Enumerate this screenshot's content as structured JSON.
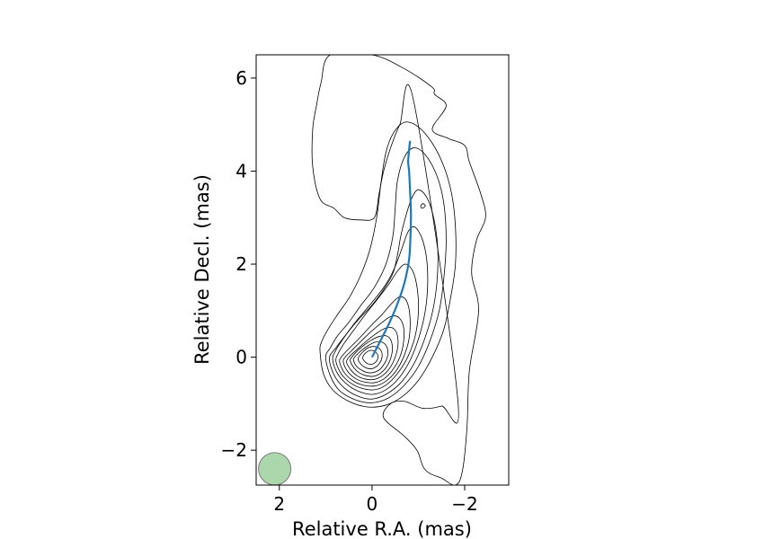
{
  "chart_data": {
    "type": "contour",
    "title": "",
    "xlabel": "Relative R.A. (mas)",
    "ylabel": "Relative Decl. (mas)",
    "xlim": [
      2.5,
      -2.95
    ],
    "ylim": [
      -2.75,
      6.5
    ],
    "x_ticks": [
      2,
      0,
      -2
    ],
    "x_tick_labels": [
      "2",
      "0",
      "−2"
    ],
    "y_ticks": [
      -2,
      0,
      2,
      4,
      6
    ],
    "y_tick_labels": [
      "−2",
      "0",
      "2",
      "4",
      "6"
    ],
    "grid": false,
    "ridge_line": {
      "color": "#1f77b4",
      "x": [
        0.0,
        -0.18,
        -0.38,
        -0.55,
        -0.7,
        -0.8,
        -0.83,
        -0.84,
        -0.82,
        -0.8,
        -0.78,
        -0.8,
        -0.82
      ],
      "y": [
        0.0,
        0.35,
        0.75,
        1.15,
        1.6,
        2.1,
        2.6,
        3.1,
        3.6,
        4.0,
        4.2,
        4.45,
        4.65
      ]
    },
    "beam": {
      "x": 2.1,
      "y": -2.4,
      "diameter_mas": 0.7,
      "color": "#90c990"
    },
    "contours": [
      {
        "level": 1,
        "x": [
          -1.85,
          -1.5,
          -1.1,
          -0.7,
          -0.4,
          -0.25,
          -0.7,
          -0.97,
          -1.1,
          -1.25,
          -1.5,
          -1.8,
          -1.95,
          -2.05,
          -2.1,
          -2.3,
          -2.15,
          -2.25,
          -2.45,
          -2.35,
          -2.1,
          -2.0,
          -1.65,
          -1.3,
          -1.6,
          -1.35,
          -1.3,
          -0.7,
          0.0,
          0.9,
          1.1,
          1.2,
          1.28,
          1.28,
          1.12,
          0.82,
          0.6,
          0.25,
          -0.05,
          -0.15,
          -0.25,
          -0.4,
          -0.6,
          -0.9
        ],
        "y": [
          -0.9,
          -1.05,
          -1.1,
          -0.95,
          -1.0,
          -1.3,
          -1.7,
          -2.0,
          -2.35,
          -2.5,
          -2.6,
          -2.75,
          -2.45,
          -1.5,
          -0.3,
          1.0,
          1.8,
          2.5,
          3.0,
          3.5,
          4.2,
          4.55,
          4.7,
          4.9,
          5.4,
          5.65,
          5.8,
          6.2,
          6.5,
          6.5,
          5.9,
          5.4,
          4.9,
          4.1,
          3.4,
          3.2,
          3.0,
          2.95,
          3.0,
          3.5,
          4.0,
          4.5,
          5.0,
          5.5
        ]
      },
      {
        "level": 2,
        "x": [
          1.12,
          1.05,
          0.85,
          0.5,
          0.1,
          -0.3,
          -0.65,
          -1.0,
          -1.3,
          -1.55,
          -1.7,
          -1.8,
          -1.8,
          -1.72,
          -1.55,
          -1.3,
          -1.0,
          -0.7,
          -0.45,
          -0.3,
          -0.2,
          -0.1,
          0.05,
          0.25,
          0.48,
          0.72,
          0.95,
          1.1
        ],
        "y": [
          0.1,
          -0.35,
          -0.7,
          -0.95,
          -1.07,
          -1.03,
          -0.85,
          -0.5,
          0.0,
          0.6,
          1.3,
          2.0,
          2.8,
          3.5,
          4.1,
          4.6,
          4.95,
          5.05,
          4.8,
          4.4,
          3.8,
          3.0,
          2.3,
          1.75,
          1.3,
          0.95,
          0.6,
          0.3
        ]
      },
      {
        "level": 3,
        "x": [
          1.0,
          0.9,
          0.7,
          0.35,
          0.0,
          -0.35,
          -0.7,
          -1.0,
          -1.25,
          -1.45,
          -1.55,
          -1.6,
          -1.55,
          -1.4,
          -1.15,
          -0.9,
          -0.7,
          -0.55,
          -0.5,
          -0.45,
          -0.3,
          -0.05,
          0.25,
          0.5,
          0.75,
          0.9
        ],
        "y": [
          0.0,
          -0.4,
          -0.72,
          -0.92,
          -0.98,
          -0.88,
          -0.6,
          -0.2,
          0.35,
          1.0,
          1.7,
          2.5,
          3.3,
          3.9,
          4.35,
          4.5,
          4.3,
          3.8,
          3.2,
          2.6,
          2.0,
          1.5,
          1.1,
          0.75,
          0.45,
          0.2
        ]
      },
      {
        "level": 4,
        "x": [
          0.92,
          0.82,
          0.6,
          0.3,
          0.0,
          -0.3,
          -0.62,
          -0.9,
          -1.12,
          -1.3,
          -1.4,
          -1.42,
          -1.35,
          -1.2,
          -1.0,
          -0.85,
          -0.72,
          -0.62,
          -0.55,
          -0.45,
          -0.25,
          0.0,
          0.3,
          0.55,
          0.78
        ],
        "y": [
          -0.02,
          -0.38,
          -0.66,
          -0.84,
          -0.9,
          -0.8,
          -0.55,
          -0.15,
          0.35,
          0.95,
          1.6,
          2.3,
          2.9,
          3.4,
          3.6,
          3.4,
          3.0,
          2.6,
          2.2,
          1.8,
          1.45,
          1.12,
          0.8,
          0.5,
          0.2
        ]
      },
      {
        "level": 5,
        "x": [
          0.85,
          0.74,
          0.52,
          0.25,
          -0.02,
          -0.3,
          -0.58,
          -0.83,
          -1.02,
          -1.15,
          -1.2,
          -1.18,
          -1.08,
          -0.92,
          -0.78,
          -0.65,
          -0.5,
          -0.32,
          -0.1,
          0.15,
          0.4,
          0.62,
          0.78
        ],
        "y": [
          -0.05,
          -0.36,
          -0.6,
          -0.75,
          -0.8,
          -0.7,
          -0.45,
          -0.05,
          0.45,
          1.0,
          1.55,
          2.1,
          2.55,
          2.8,
          2.7,
          2.35,
          1.95,
          1.6,
          1.3,
          1.0,
          0.7,
          0.4,
          0.15
        ]
      },
      {
        "level": 6,
        "x": [
          0.78,
          0.67,
          0.47,
          0.22,
          -0.05,
          -0.3,
          -0.55,
          -0.77,
          -0.93,
          -1.0,
          -0.98,
          -0.88,
          -0.72,
          -0.55,
          -0.35,
          -0.12,
          0.12,
          0.38,
          0.6,
          0.73
        ],
        "y": [
          -0.08,
          -0.35,
          -0.55,
          -0.67,
          -0.7,
          -0.6,
          -0.35,
          0.0,
          0.45,
          0.95,
          1.45,
          1.85,
          2.0,
          1.85,
          1.55,
          1.25,
          0.95,
          0.6,
          0.3,
          0.08
        ]
      },
      {
        "level": 7,
        "x": [
          0.7,
          0.6,
          0.42,
          0.2,
          -0.05,
          -0.28,
          -0.5,
          -0.68,
          -0.8,
          -0.82,
          -0.75,
          -0.6,
          -0.42,
          -0.22,
          0.02,
          0.28,
          0.5,
          0.65
        ],
        "y": [
          -0.1,
          -0.33,
          -0.5,
          -0.6,
          -0.62,
          -0.53,
          -0.32,
          0.0,
          0.4,
          0.85,
          1.2,
          1.3,
          1.15,
          0.92,
          0.68,
          0.4,
          0.18,
          0.02
        ]
      },
      {
        "level": 8,
        "x": [
          0.62,
          0.53,
          0.37,
          0.18,
          -0.04,
          -0.25,
          -0.44,
          -0.6,
          -0.68,
          -0.68,
          -0.58,
          -0.42,
          -0.22,
          0.02,
          0.25,
          0.45,
          0.58
        ],
        "y": [
          -0.1,
          -0.3,
          -0.45,
          -0.53,
          -0.55,
          -0.47,
          -0.28,
          0.0,
          0.32,
          0.65,
          0.85,
          0.88,
          0.75,
          0.55,
          0.33,
          0.13,
          0.0
        ]
      },
      {
        "level": 9,
        "x": [
          0.55,
          0.46,
          0.32,
          0.15,
          -0.04,
          -0.22,
          -0.38,
          -0.5,
          -0.56,
          -0.54,
          -0.44,
          -0.28,
          -0.08,
          0.14,
          0.33,
          0.48
        ],
        "y": [
          -0.1,
          -0.27,
          -0.4,
          -0.47,
          -0.48,
          -0.4,
          -0.24,
          0.0,
          0.26,
          0.5,
          0.63,
          0.62,
          0.5,
          0.33,
          0.16,
          0.02
        ]
      },
      {
        "level": 10,
        "x": [
          0.47,
          0.39,
          0.27,
          0.12,
          -0.04,
          -0.19,
          -0.32,
          -0.41,
          -0.44,
          -0.4,
          -0.3,
          -0.14,
          0.04,
          0.22,
          0.37,
          0.45
        ],
        "y": [
          -0.08,
          -0.23,
          -0.34,
          -0.4,
          -0.41,
          -0.34,
          -0.2,
          0.0,
          0.2,
          0.38,
          0.46,
          0.44,
          0.35,
          0.22,
          0.08,
          -0.02
        ]
      },
      {
        "level": 11,
        "x": [
          0.4,
          0.33,
          0.22,
          0.1,
          -0.03,
          -0.16,
          -0.26,
          -0.33,
          -0.34,
          -0.29,
          -0.19,
          -0.06,
          0.08,
          0.22,
          0.33,
          0.39
        ],
        "y": [
          -0.07,
          -0.2,
          -0.28,
          -0.33,
          -0.33,
          -0.27,
          -0.15,
          0.0,
          0.15,
          0.27,
          0.33,
          0.32,
          0.25,
          0.15,
          0.05,
          -0.02
        ]
      },
      {
        "level": 12,
        "x": [
          0.3,
          0.24,
          0.15,
          0.05,
          -0.05,
          -0.14,
          -0.2,
          -0.22,
          -0.19,
          -0.12,
          -0.02,
          0.09,
          0.19,
          0.27
        ],
        "y": [
          -0.05,
          -0.15,
          -0.22,
          -0.25,
          -0.23,
          -0.16,
          -0.06,
          0.05,
          0.15,
          0.21,
          0.23,
          0.2,
          0.12,
          0.03
        ]
      },
      {
        "level": 13,
        "x": [
          0.2,
          0.14,
          0.06,
          -0.03,
          -0.1,
          -0.13,
          -0.1,
          -0.03,
          0.06,
          0.14,
          0.19
        ],
        "y": [
          -0.03,
          -0.11,
          -0.15,
          -0.14,
          -0.08,
          0.01,
          0.09,
          0.14,
          0.14,
          0.09,
          0.02
        ]
      },
      {
        "level": 14,
        "x": [
          -1.05,
          -1.08,
          -1.15,
          -1.1
        ],
        "y": [
          3.25,
          3.2,
          3.25,
          3.3
        ]
      }
    ]
  }
}
